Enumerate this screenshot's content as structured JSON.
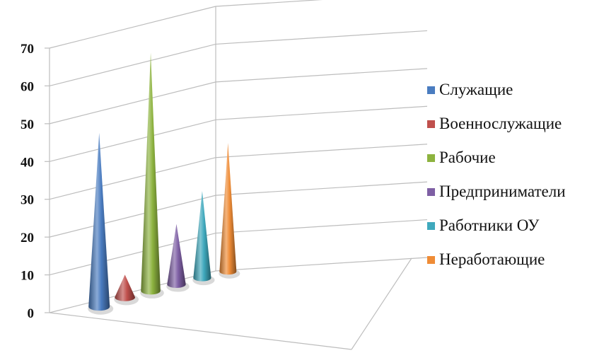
{
  "chart_data": {
    "type": "bar",
    "style": "3d-cone",
    "title": "",
    "xlabel": "",
    "ylabel": "",
    "ylim": [
      0,
      70
    ],
    "yticks": [
      0,
      10,
      20,
      30,
      40,
      50,
      60,
      70
    ],
    "grid": true,
    "legend_position": "right",
    "series": [
      {
        "name": "Служащие",
        "value": 46,
        "color": "#4a7cc0"
      },
      {
        "name": "Военнослужащие",
        "value": 6,
        "color": "#c0504d"
      },
      {
        "name": "Рабочие",
        "value": 63,
        "color": "#8db33f"
      },
      {
        "name": "Предприниматели",
        "value": 16,
        "color": "#7e5fa4"
      },
      {
        "name": "Работники ОУ",
        "value": 23,
        "color": "#3fa9bd"
      },
      {
        "name": "Неработающие",
        "value": 34,
        "color": "#ef8c36"
      }
    ]
  }
}
